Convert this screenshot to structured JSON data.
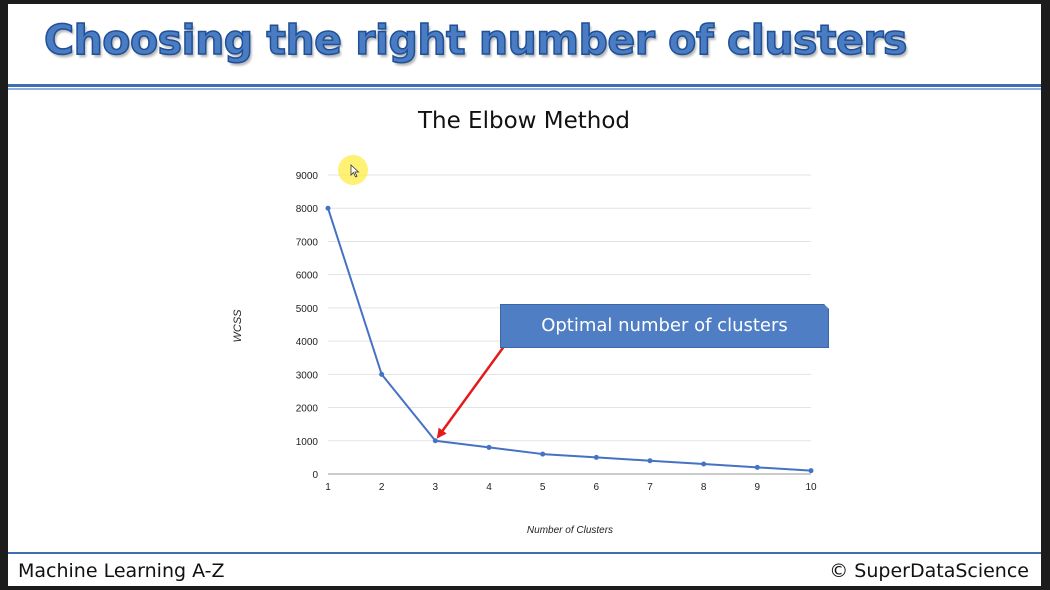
{
  "slide": {
    "title": "Choosing the right number of clusters",
    "callout": "Optimal number of clusters",
    "footer_left": "Machine Learning A-Z",
    "footer_right": "© SuperDataScience"
  },
  "colors": {
    "title_blue": "#4a7cc4",
    "line": "#4472c4",
    "arrow": "#e41b1b",
    "callout_fill": "#4f7ec5"
  },
  "icons": [
    "cursor-icon"
  ],
  "chart_data": {
    "type": "line",
    "title": "The Elbow Method",
    "xlabel": "Number of Clusters",
    "ylabel": "WCSS",
    "x": [
      1,
      2,
      3,
      4,
      5,
      6,
      7,
      8,
      9,
      10
    ],
    "series": [
      {
        "values": [
          8000,
          3000,
          1000,
          800,
          600,
          500,
          400,
          300,
          200,
          100
        ]
      }
    ],
    "xlim": [
      1,
      10
    ],
    "ylim": [
      0,
      9000
    ],
    "yticks": [
      0,
      1000,
      2000,
      3000,
      4000,
      5000,
      6000,
      7000,
      8000,
      9000
    ],
    "xticks": [
      1,
      2,
      3,
      4,
      5,
      6,
      7,
      8,
      9,
      10
    ],
    "grid": true,
    "legend": "none",
    "annotation": {
      "text": "Optimal number of clusters",
      "target_x": 3,
      "target_y": 1000
    }
  }
}
